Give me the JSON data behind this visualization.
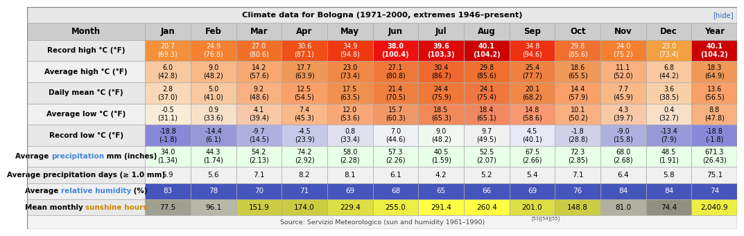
{
  "title": "Climate data for Bologna (1971–2000, extremes 1946–present)",
  "hide_link": "[hide]",
  "source_text": "Source: Servizio Meteorologico (sun and humidity 1961–1990)",
  "source_sup": "[53][54][55]",
  "columns": [
    "Month",
    "Jan",
    "Feb",
    "Mar",
    "Apr",
    "May",
    "Jun",
    "Jul",
    "Aug",
    "Sep",
    "Oct",
    "Nov",
    "Dec",
    "Year"
  ],
  "rows": [
    {
      "label": "Record high °C (°F)",
      "label_parts": null,
      "values": [
        "20.7\n(69.3)",
        "24.9\n(76.8)",
        "27.0\n(80.6)",
        "30.6\n(87.1)",
        "34.9\n(94.8)",
        "38.0\n(100.4)",
        "39.6\n(103.3)",
        "40.1\n(104.2)",
        "34.8\n(94.6)",
        "29.8\n(85.6)",
        "24.0\n(75.2)",
        "23.0\n(73.4)",
        "40.1\n(104.2)"
      ],
      "bg_colors": [
        "#F4903A",
        "#F48030",
        "#F07028",
        "#EE5018",
        "#EE3810",
        "#EE1010",
        "#DD0808",
        "#CC0000",
        "#EE3010",
        "#F07030",
        "#F48030",
        "#F4A040",
        "#CC0000"
      ],
      "text_color": "#ffffff",
      "label_bg": "#e8e8e8",
      "bold_vals": [
        5,
        6,
        7,
        12
      ],
      "two_line": true
    },
    {
      "label": "Average high °C (°F)",
      "label_parts": null,
      "values": [
        "6.0\n(42.8)",
        "9.0\n(48.2)",
        "14.2\n(57.6)",
        "17.7\n(63.9)",
        "23.0\n(73.4)",
        "27.1\n(80.8)",
        "30.4\n(86.7)",
        "29.8\n(85.6)",
        "25.4\n(77.7)",
        "18.6\n(65.5)",
        "11.1\n(52.0)",
        "6.8\n(44.2)",
        "18.3\n(64.9)"
      ],
      "bg_colors": [
        "#F8C8A0",
        "#F8B888",
        "#F8A870",
        "#F09858",
        "#F08848",
        "#F07838",
        "#F06830",
        "#F07030",
        "#F08040",
        "#F09858",
        "#F8B080",
        "#F8C8A0",
        "#F09858"
      ],
      "text_color": "#000000",
      "label_bg": "#f0f0f0",
      "bold_vals": [],
      "two_line": true
    },
    {
      "label": "Daily mean °C (°F)",
      "label_parts": null,
      "values": [
        "2.8\n(37.0)",
        "5.0\n(41.0)",
        "9.2\n(48.6)",
        "12.5\n(54.5)",
        "17.5\n(63.5)",
        "21.4\n(70.5)",
        "24.4\n(75.9)",
        "24.1\n(75.4)",
        "20.1\n(68.2)",
        "14.4\n(57.9)",
        "7.7\n(45.9)",
        "3.6\n(38.5)",
        "13.6\n(56.5)"
      ],
      "bg_colors": [
        "#F8D8B8",
        "#F8C8A0",
        "#F8B080",
        "#F8A068",
        "#F09050",
        "#F08040",
        "#F07838",
        "#F07840",
        "#F08848",
        "#F8A068",
        "#F8B888",
        "#F8D0A8",
        "#F8A068"
      ],
      "text_color": "#000000",
      "label_bg": "#e8e8e8",
      "bold_vals": [],
      "two_line": true
    },
    {
      "label": "Average low °C (°F)",
      "label_parts": null,
      "values": [
        "-0.5\n(31.1)",
        "0.9\n(33.6)",
        "4.1\n(39.4)",
        "7.4\n(45.3)",
        "12.0\n(53.6)",
        "15.7\n(60.3)",
        "18.5\n(65.3)",
        "18.4\n(65.1)",
        "14.8\n(58.6)",
        "10.1\n(50.2)",
        "4.3\n(39.7)",
        "0.4\n(32.7)",
        "8.8\n(47.8)"
      ],
      "bg_colors": [
        "#F8ECD8",
        "#F8E0C8",
        "#F8C8A8",
        "#F8B888",
        "#F8A878",
        "#F09868",
        "#F08858",
        "#F08860",
        "#F89870",
        "#F8B080",
        "#F8C8A8",
        "#F8E0C8",
        "#F8B080"
      ],
      "text_color": "#000000",
      "label_bg": "#f0f0f0",
      "bold_vals": [],
      "two_line": true
    },
    {
      "label": "Record low °C (°F)",
      "label_parts": null,
      "values": [
        "-18.8\n(-1.8)",
        "-14.4\n(6.1)",
        "-9.7\n(14.5)",
        "-4.5\n(23.9)",
        "0.8\n(33.4)",
        "7.0\n(44.6)",
        "9.0\n(48.2)",
        "9.7\n(49.5)",
        "4.5\n(40.1)",
        "-1.8\n(28.8)",
        "-9.0\n(15.8)",
        "-13.4\n(7.9)",
        "-18.8\n(-1.8)"
      ],
      "bg_colors": [
        "#8888D8",
        "#9898D8",
        "#B0B0E0",
        "#C8C8E8",
        "#E0E0F0",
        "#F0F0F8",
        "#F0F8F0",
        "#F0F0F0",
        "#E8E8F8",
        "#D0D0E8",
        "#B0B0E0",
        "#9898D8",
        "#8888D8"
      ],
      "text_color": "#000000",
      "label_bg": "#e8e8e8",
      "bold_vals": [],
      "two_line": true
    },
    {
      "label": null,
      "label_parts": [
        [
          "Average ",
          "#000000"
        ],
        [
          "precipitation",
          "#4488dd"
        ],
        [
          " mm (inches)",
          "#000000"
        ]
      ],
      "values": [
        "34.0\n(1.34)",
        "44.3\n(1.74)",
        "54.2\n(2.13)",
        "74.2\n(2.92)",
        "58.0\n(2.28)",
        "57.3\n(2.26)",
        "40.5\n(1.59)",
        "52.5\n(2.07)",
        "67.5\n(2.66)",
        "72.3\n(2.85)",
        "68.0\n(2.68)",
        "48.5\n(1.91)",
        "671.3\n(26.43)"
      ],
      "bg_colors": [
        "#e8ffe8",
        "#e8ffe8",
        "#e8ffe8",
        "#e8ffe8",
        "#e8ffe8",
        "#e8ffe8",
        "#e8ffe8",
        "#e8ffe8",
        "#e8ffe8",
        "#e8ffe8",
        "#e8ffe8",
        "#e8ffe8",
        "#e8ffe8"
      ],
      "text_color": "#000000",
      "label_bg": "#f0f0f0",
      "bold_vals": [],
      "two_line": true
    },
    {
      "label": "Average precipitation days (≥ 1.0 mm)",
      "label_parts": null,
      "values": [
        "5.9",
        "5.6",
        "7.1",
        "8.2",
        "8.1",
        "6.1",
        "4.2",
        "5.2",
        "5.4",
        "7.1",
        "6.4",
        "5.8",
        "75.1"
      ],
      "bg_colors": [
        "#f0f0f0",
        "#f0f0f0",
        "#f0f0f0",
        "#f0f0f0",
        "#f0f0f0",
        "#f0f0f0",
        "#f0f0f0",
        "#f0f0f0",
        "#f0f0f0",
        "#f0f0f0",
        "#f0f0f0",
        "#f0f0f0",
        "#f0f0f0"
      ],
      "text_color": "#000000",
      "label_bg": "#e8e8e8",
      "bold_vals": [],
      "two_line": false
    },
    {
      "label": null,
      "label_parts": [
        [
          "Average ",
          "#000000"
        ],
        [
          "relative humidity",
          "#4488dd"
        ],
        [
          " (%)",
          "#000000"
        ]
      ],
      "values": [
        "83",
        "78",
        "70",
        "71",
        "69",
        "68",
        "65",
        "66",
        "69",
        "76",
        "84",
        "84",
        "74"
      ],
      "bg_colors": [
        "#4455bb",
        "#4455bb",
        "#4455bb",
        "#4455bb",
        "#4455bb",
        "#4455bb",
        "#4455bb",
        "#4455bb",
        "#4455bb",
        "#4455bb",
        "#4455bb",
        "#4455bb",
        "#4455bb"
      ],
      "text_color": "#ffffff",
      "label_bg": "#f0f0f0",
      "bold_vals": [],
      "two_line": false
    },
    {
      "label": null,
      "label_parts": [
        [
          "Mean monthly ",
          "#000000"
        ],
        [
          "sunshine hours",
          "#cc8800"
        ]
      ],
      "values": [
        "77.5",
        "96.1",
        "151.9",
        "174.0",
        "229.4",
        "255.0",
        "291.4",
        "260.4",
        "201.0",
        "148.8",
        "81.0",
        "74.4",
        "2,040.9"
      ],
      "bg_colors": [
        "#a0a090",
        "#b8b8a8",
        "#cccc44",
        "#cccc44",
        "#dddd44",
        "#eeee44",
        "#ffff44",
        "#ffff44",
        "#dddd44",
        "#cccc44",
        "#b0b0a0",
        "#909080",
        "#eeee44"
      ],
      "text_color": "#000000",
      "label_bg": "#e8e8e8",
      "bold_vals": [],
      "two_line": false
    }
  ]
}
